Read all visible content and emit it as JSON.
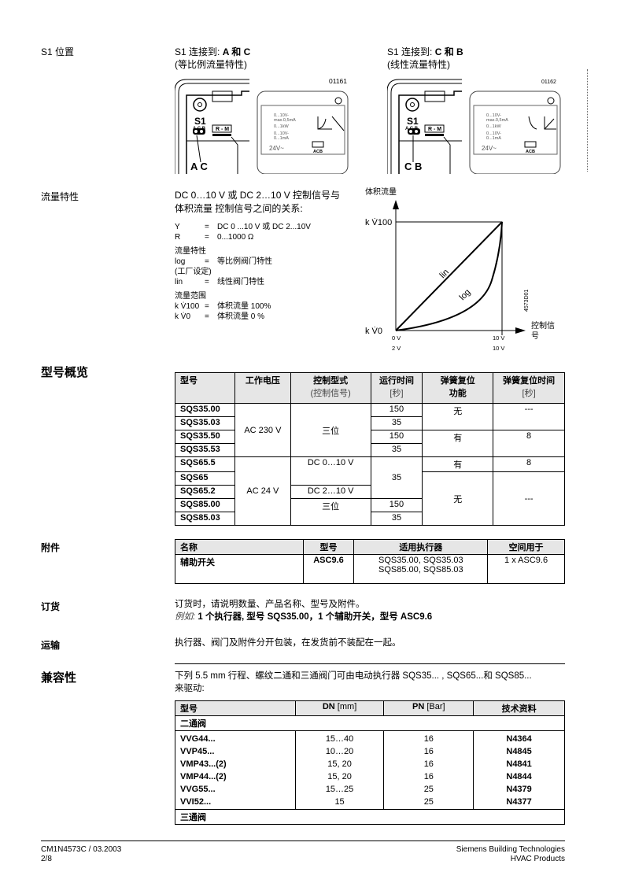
{
  "s1": {
    "label": "S1 位置",
    "left": {
      "title_prefix": "S1 连接到: ",
      "title_bold": "A 和 C",
      "subtitle": "(等比例流量特性)",
      "code": "01161",
      "bottom": "A  C"
    },
    "right": {
      "title_prefix": "S1 连接到: ",
      "title_bold": "C 和 B",
      "subtitle": "(线性流量特性)",
      "code": "01162",
      "bottom": "C  B"
    },
    "panel": {
      "s1": "S1",
      "acb": "A C B",
      "rm": "R - M",
      "terms": [
        "U",
        "M",
        "R",
        "Y",
        "G",
        "G0"
      ],
      "specs": [
        "0...10V-",
        "max.0,5mA",
        "0...1kW",
        "0...10V-",
        "0...1mA"
      ],
      "supply": "24V~",
      "conn": "ACB"
    }
  },
  "flow": {
    "label": "流量特性",
    "intro": [
      "DC 0…10 V 或 DC 2…10 V 控制信号与",
      "体积流量  控制信号之间的关系:"
    ],
    "defs": [
      {
        "k": "Y",
        "v": "DC 0 ...10 V 或 DC 2...10V"
      },
      {
        "k": "R",
        "v": "0...1000 Ω"
      }
    ],
    "char_title": "流量特性",
    "chars": [
      {
        "k": "log",
        "v": "等比例阀门特性"
      },
      {
        "k": "(工厂设定)",
        "v": ""
      },
      {
        "k": "lin",
        "v": "线性阀门特性"
      }
    ],
    "range_title": "流量范围",
    "ranges": [
      {
        "k": "k V̇100",
        "v": "体积流量 100%"
      },
      {
        "k": "k V̇0",
        "v": "体积流量  0 %"
      }
    ],
    "chart": {
      "ylabel": "体积流量",
      "xlabel": "控制信号",
      "ytop": "k V̇100",
      "ybottom": "k V̇0",
      "x0a": "0 V",
      "x0b": "2 V",
      "x1a": "10 V",
      "x1b": "10 V",
      "lin": "lin",
      "log": "log",
      "code": "4573D01"
    }
  },
  "models": {
    "title": "型号概览",
    "headers": [
      [
        "型号",
        ""
      ],
      [
        "工作电压",
        ""
      ],
      [
        "控制型式",
        "(控制信号)"
      ],
      [
        "运行时间",
        "[秒]"
      ],
      [
        "弹簧复位",
        "功能"
      ],
      [
        "弹簧复位时间",
        "[秒]"
      ]
    ],
    "rows": [
      "SQS35.00",
      "SQS35.03",
      "SQS35.50",
      "SQS35.53",
      "SQS65.5",
      "SQS65",
      "SQS65.2",
      "SQS85.00",
      "SQS85.03"
    ],
    "voltage": [
      "AC 230 V",
      "AC 24 V"
    ],
    "control": [
      "三位",
      "DC 0…10 V",
      "DC 2…10 V",
      "三位"
    ],
    "runtime": [
      "150",
      "35",
      "150",
      "35",
      "35",
      "150",
      "35"
    ],
    "spring": [
      "无",
      "有",
      "有",
      "无"
    ],
    "springtime": [
      "---",
      "8",
      "8",
      "---"
    ]
  },
  "accessories": {
    "label": "附件",
    "headers": [
      "名称",
      "型号",
      "适用执行器",
      "空间用于"
    ],
    "row": {
      "name": "辅助开关",
      "type": "ASC9.6",
      "for": [
        "SQS35.00, SQS35.03",
        "SQS85.00, SQS85.03"
      ],
      "space": "1 x ASC9.6"
    }
  },
  "order": {
    "label": "订货",
    "text": "订货时，请说明数量、产品名称、型号及附件。",
    "example_label": "例如:",
    "example": "1 个执行器, 型号 SQS35.00，1 个辅助开关，型号 ASC9.6"
  },
  "shipping": {
    "label": "运输",
    "text": "执行器、阀门及附件分开包装，在发货前不装配在一起。"
  },
  "compat": {
    "label": "兼容性",
    "text": [
      "下列 5.5 mm 行程、螺纹二通和三通阀门可由电动执行器 SQS35... , SQS65...和 SQS85...",
      "来驱动:"
    ],
    "headers": [
      {
        "b": "型号",
        "n": ""
      },
      {
        "b": "DN",
        "n": " [mm]"
      },
      {
        "b": "PN",
        "n": " [Bar]"
      },
      {
        "b": "技术资料",
        "n": ""
      }
    ],
    "group1": "二通阀",
    "group2": "三通阀",
    "rows": [
      [
        "VVG44...",
        "15…40",
        "16",
        "N4364"
      ],
      [
        "VVP45...",
        "10…20",
        "16",
        "N4845"
      ],
      [
        "VMP43...(2)",
        "15, 20",
        "16",
        "N4841"
      ],
      [
        "VMP44...(2)",
        "15, 20",
        "16",
        "N4844"
      ],
      [
        "VVG55...",
        "15…25",
        "25",
        "N4379"
      ],
      [
        "VVI52...",
        "15",
        "25",
        "N4377"
      ]
    ]
  },
  "footer": {
    "doc": "CM1N4573C / 03.2003",
    "page": "2/8",
    "company": "Siemens Building Technologies",
    "division": "HVAC Products"
  }
}
